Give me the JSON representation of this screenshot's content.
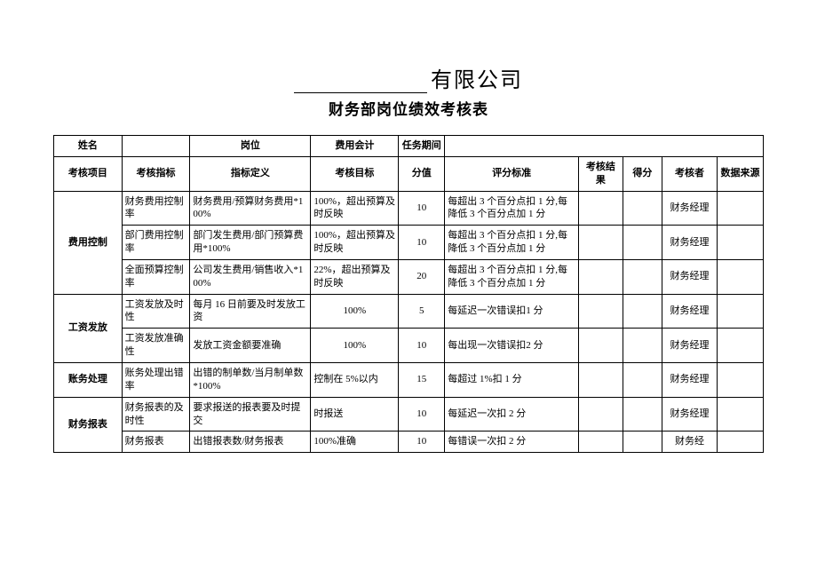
{
  "company_suffix": "有限公司",
  "subtitle": "财务部岗位绩效考核表",
  "header_row1": {
    "name_label": "姓名",
    "position_label": "岗位",
    "position_value": "费用会计",
    "period_label": "任务期间"
  },
  "header_row2": {
    "project": "考核项目",
    "indicator": "考核指标",
    "definition": "指标定义",
    "goal": "考核目标",
    "score": "分值",
    "standard": "评分标准",
    "result": "考核结果",
    "got": "得分",
    "reviewer": "考核者",
    "source": "数据来源"
  },
  "groups": [
    {
      "name": "费用控制",
      "rows": [
        {
          "indicator": "财务费用控制率",
          "definition": "财务费用/预算财务费用*100%",
          "goal": "100%，超出预算及时反映",
          "score": "10",
          "standard": "每超出 3 个百分点扣 1 分,每降低 3 个百分点加 1 分",
          "reviewer": "财务经理"
        },
        {
          "indicator": "部门费用控制率",
          "definition": "部门发生费用/部门预算费用*100%",
          "goal": "100%，超出预算及时反映",
          "score": "10",
          "standard": "每超出 3 个百分点扣 1 分,每降低 3 个百分点加 1 分",
          "reviewer": "财务经理"
        },
        {
          "indicator": "全面预算控制率",
          "definition": "公司发生费用/销售收入*100%",
          "goal": "22%，超出预算及时反映",
          "score": "20",
          "standard": "每超出 3 个百分点扣 1 分,每降低 3 个百分点加 1 分",
          "reviewer": "财务经理"
        }
      ]
    },
    {
      "name": "工资发放",
      "rows": [
        {
          "indicator": "工资发放及时性",
          "definition": "每月 16 日前要及时发放工资",
          "goal": "100%",
          "goal_center": true,
          "score": "5",
          "standard": "每延迟一次错误扣1 分",
          "reviewer": "财务经理"
        },
        {
          "indicator": "工资发放准确性",
          "definition": "发放工资金额要准确",
          "goal": "100%",
          "goal_center": true,
          "score": "10",
          "standard": "每出现一次错误扣2 分",
          "reviewer": "财务经理"
        }
      ]
    },
    {
      "name": "账务处理",
      "rows": [
        {
          "indicator": "账务处理出错率",
          "definition": "出错的制单数/当月制单数*100%",
          "goal": "控制在 5%以内",
          "score": "15",
          "standard": "每超过 1%扣 1 分",
          "reviewer": "财务经理"
        }
      ]
    },
    {
      "name": "财务报表",
      "rows": [
        {
          "indicator": "财务报表的及时性",
          "definition": "要求报送的报表要及时提交",
          "goal": "时报送",
          "score": "10",
          "standard": "每延迟一次扣 2 分",
          "reviewer": "财务经理"
        },
        {
          "indicator": "财务报表",
          "definition": "出错报表数/财务报表",
          "goal": "100%准确",
          "score": "10",
          "standard": "每错误一次扣 2 分",
          "reviewer": "财务经"
        }
      ]
    }
  ]
}
